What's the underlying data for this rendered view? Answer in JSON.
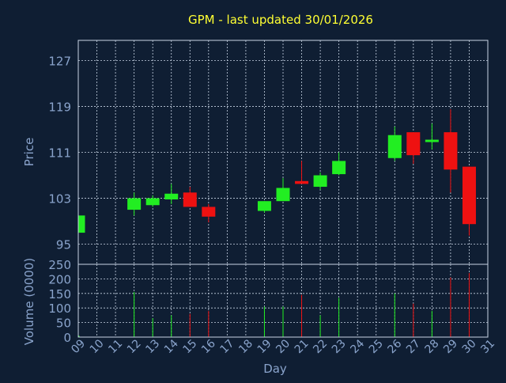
{
  "colors": {
    "background": "#0f1e33",
    "title": "#ffff33",
    "axis_text": "#8aa4cc",
    "grid": "#c8d4e4",
    "up": "#22ee22",
    "down": "#ee1111"
  },
  "chart_data": [
    {
      "type": "candlestick",
      "title": "GPM - last updated 30/01/2026",
      "ylabel": "Price",
      "xlabel": "Day",
      "ylim": [
        91.5,
        130.5
      ],
      "yticks": [
        95,
        103,
        111,
        119,
        127
      ],
      "grid": true,
      "x": [
        "09",
        "10",
        "11",
        "12",
        "13",
        "14",
        "15",
        "16",
        "17",
        "18",
        "19",
        "20",
        "21",
        "22",
        "23",
        "24",
        "25",
        "26",
        "27",
        "28",
        "29",
        "30",
        "31"
      ],
      "series": [
        {
          "points": [
            {
              "day": "09",
              "open": 97.0,
              "high": 100.5,
              "low": 97.0,
              "close": 100.0
            },
            {
              "day": "12",
              "open": 101.0,
              "high": 104.0,
              "low": 100.0,
              "close": 103.0
            },
            {
              "day": "13",
              "open": 101.8,
              "high": 103.5,
              "low": 101.5,
              "close": 103.0
            },
            {
              "day": "14",
              "open": 102.8,
              "high": 105.5,
              "low": 102.0,
              "close": 103.8
            },
            {
              "day": "15",
              "open": 104.0,
              "high": 105.0,
              "low": 101.5,
              "close": 101.5
            },
            {
              "day": "16",
              "open": 101.5,
              "high": 102.0,
              "low": 98.8,
              "close": 99.8
            },
            {
              "day": "19",
              "open": 100.8,
              "high": 102.5,
              "low": 100.5,
              "close": 102.5
            },
            {
              "day": "20",
              "open": 102.5,
              "high": 106.5,
              "low": 102.5,
              "close": 104.8
            },
            {
              "day": "21",
              "open": 106.0,
              "high": 109.5,
              "low": 105.5,
              "close": 105.5
            },
            {
              "day": "22",
              "open": 105.0,
              "high": 107.5,
              "low": 104.5,
              "close": 107.0
            },
            {
              "day": "23",
              "open": 107.2,
              "high": 111.0,
              "low": 107.0,
              "close": 109.5
            },
            {
              "day": "26",
              "open": 110.0,
              "high": 115.5,
              "low": 109.5,
              "close": 114.0
            },
            {
              "day": "27",
              "open": 114.5,
              "high": 114.5,
              "low": 109.0,
              "close": 110.5
            },
            {
              "day": "28",
              "open": 112.8,
              "high": 116.0,
              "low": 111.5,
              "close": 113.2
            },
            {
              "day": "29",
              "open": 114.5,
              "high": 118.5,
              "low": 104.0,
              "close": 108.0
            },
            {
              "day": "30",
              "open": 108.5,
              "high": 108.5,
              "low": 96.5,
              "close": 98.5
            }
          ]
        }
      ]
    },
    {
      "type": "bar",
      "ylabel": "Volume (0000)",
      "ylim": [
        0,
        250
      ],
      "yticks": [
        0,
        50,
        100,
        150,
        200,
        250
      ],
      "grid": true,
      "x": [
        "09",
        "10",
        "11",
        "12",
        "13",
        "14",
        "15",
        "16",
        "17",
        "18",
        "19",
        "20",
        "21",
        "22",
        "23",
        "24",
        "25",
        "26",
        "27",
        "28",
        "29",
        "30",
        "31"
      ],
      "series": [
        {
          "points": [
            {
              "day": "09",
              "value": 5,
              "direction": "up"
            },
            {
              "day": "12",
              "value": 155,
              "direction": "up"
            },
            {
              "day": "13",
              "value": 65,
              "direction": "up"
            },
            {
              "day": "14",
              "value": 75,
              "direction": "up"
            },
            {
              "day": "15",
              "value": 80,
              "direction": "down"
            },
            {
              "day": "16",
              "value": 90,
              "direction": "down"
            },
            {
              "day": "19",
              "value": 105,
              "direction": "up"
            },
            {
              "day": "20",
              "value": 105,
              "direction": "up"
            },
            {
              "day": "21",
              "value": 145,
              "direction": "down"
            },
            {
              "day": "22",
              "value": 75,
              "direction": "up"
            },
            {
              "day": "23",
              "value": 135,
              "direction": "up"
            },
            {
              "day": "26",
              "value": 150,
              "direction": "up"
            },
            {
              "day": "27",
              "value": 115,
              "direction": "down"
            },
            {
              "day": "28",
              "value": 90,
              "direction": "up"
            },
            {
              "day": "29",
              "value": 205,
              "direction": "down"
            },
            {
              "day": "30",
              "value": 220,
              "direction": "down"
            }
          ]
        }
      ]
    }
  ]
}
